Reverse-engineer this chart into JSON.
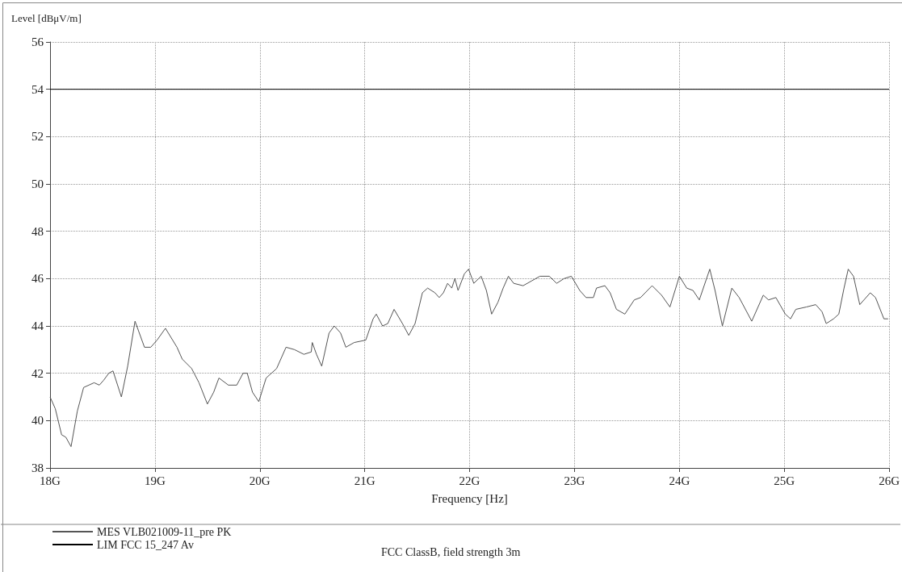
{
  "chart_data": {
    "type": "line",
    "ylabel": "Level [dBμV/m]",
    "xlabel": "Frequency [Hz]",
    "xlim": [
      18,
      26
    ],
    "xticks": [
      {
        "value": 18,
        "label": "18G"
      },
      {
        "value": 19,
        "label": "19G"
      },
      {
        "value": 20,
        "label": "20G"
      },
      {
        "value": 21,
        "label": "21G"
      },
      {
        "value": 22,
        "label": "22G"
      },
      {
        "value": 23,
        "label": "23G"
      },
      {
        "value": 24,
        "label": "24G"
      },
      {
        "value": 25,
        "label": "25G"
      },
      {
        "value": 26,
        "label": "26G"
      }
    ],
    "ylim": [
      38,
      56
    ],
    "yticks": [
      38,
      40,
      42,
      44,
      46,
      48,
      50,
      52,
      54,
      56
    ],
    "grid": true,
    "legend": "bottom left",
    "marker": "none",
    "series": [
      {
        "name": "MES VLB021009-11_pre PK",
        "color": "#555555",
        "x": [
          18.0,
          18.05,
          18.11,
          18.15,
          18.2,
          18.26,
          18.32,
          18.37,
          18.42,
          18.47,
          18.51,
          18.56,
          18.6,
          18.68,
          18.74,
          18.81,
          18.9,
          18.96,
          19.02,
          19.1,
          19.21,
          19.26,
          19.35,
          19.42,
          19.5,
          19.56,
          19.61,
          19.7,
          19.78,
          19.84,
          19.88,
          19.93,
          19.99,
          20.06,
          20.16,
          20.25,
          20.33,
          20.42,
          20.49,
          20.5,
          20.54,
          20.59,
          20.66,
          20.71,
          20.77,
          20.82,
          20.9,
          21.01,
          21.08,
          21.11,
          21.17,
          21.22,
          21.28,
          21.36,
          21.42,
          21.48,
          21.55,
          21.6,
          21.67,
          21.71,
          21.75,
          21.79,
          21.83,
          21.86,
          21.89,
          21.95,
          21.99,
          22.04,
          22.11,
          22.16,
          22.21,
          22.27,
          22.32,
          22.37,
          22.42,
          22.51,
          22.59,
          22.67,
          22.76,
          22.83,
          22.9,
          22.97,
          23.05,
          23.11,
          23.18,
          23.21,
          23.29,
          23.34,
          23.4,
          23.48,
          23.57,
          23.63,
          23.74,
          23.83,
          23.91,
          24.0,
          24.07,
          24.13,
          24.19,
          24.29,
          24.34,
          24.41,
          24.5,
          24.57,
          24.69,
          24.8,
          24.85,
          24.92,
          25.01,
          25.06,
          25.11,
          25.21,
          25.3,
          25.36,
          25.4,
          25.47,
          25.52,
          25.57,
          25.61,
          25.66,
          25.72,
          25.82,
          25.87,
          25.95,
          25.99
        ],
        "values": [
          41.0,
          40.5,
          39.4,
          39.3,
          38.9,
          40.4,
          41.4,
          41.5,
          41.6,
          41.5,
          41.7,
          42.0,
          42.1,
          41.0,
          42.3,
          44.2,
          43.1,
          43.1,
          43.4,
          43.9,
          43.1,
          42.6,
          42.2,
          41.6,
          40.7,
          41.2,
          41.8,
          41.5,
          41.5,
          42.0,
          42.0,
          41.2,
          40.8,
          41.8,
          42.2,
          43.1,
          43.0,
          42.8,
          42.9,
          43.3,
          42.8,
          42.3,
          43.7,
          44.0,
          43.7,
          43.1,
          43.3,
          43.4,
          44.3,
          44.5,
          44.0,
          44.1,
          44.7,
          44.1,
          43.6,
          44.1,
          45.4,
          45.6,
          45.4,
          45.2,
          45.4,
          45.8,
          45.6,
          46.0,
          45.5,
          46.2,
          46.4,
          45.8,
          46.1,
          45.5,
          44.5,
          45.0,
          45.6,
          46.1,
          45.8,
          45.7,
          45.9,
          46.1,
          46.1,
          45.8,
          46.0,
          46.1,
          45.5,
          45.2,
          45.2,
          45.6,
          45.7,
          45.4,
          44.7,
          44.5,
          45.1,
          45.2,
          45.7,
          45.3,
          44.8,
          46.1,
          45.6,
          45.5,
          45.1,
          46.4,
          45.5,
          44.0,
          45.6,
          45.2,
          44.2,
          45.3,
          45.1,
          45.2,
          44.5,
          44.3,
          44.7,
          44.8,
          44.9,
          44.6,
          44.1,
          44.3,
          44.5,
          45.6,
          46.4,
          46.1,
          44.9,
          45.4,
          45.2,
          44.3,
          44.3
        ]
      },
      {
        "name": "LIM FCC 15_247 Av",
        "color": "#000000",
        "x": [
          18,
          26
        ],
        "values": [
          54,
          54
        ]
      }
    ],
    "annotations": [
      "FCC ClassB, field strength 3m"
    ]
  }
}
